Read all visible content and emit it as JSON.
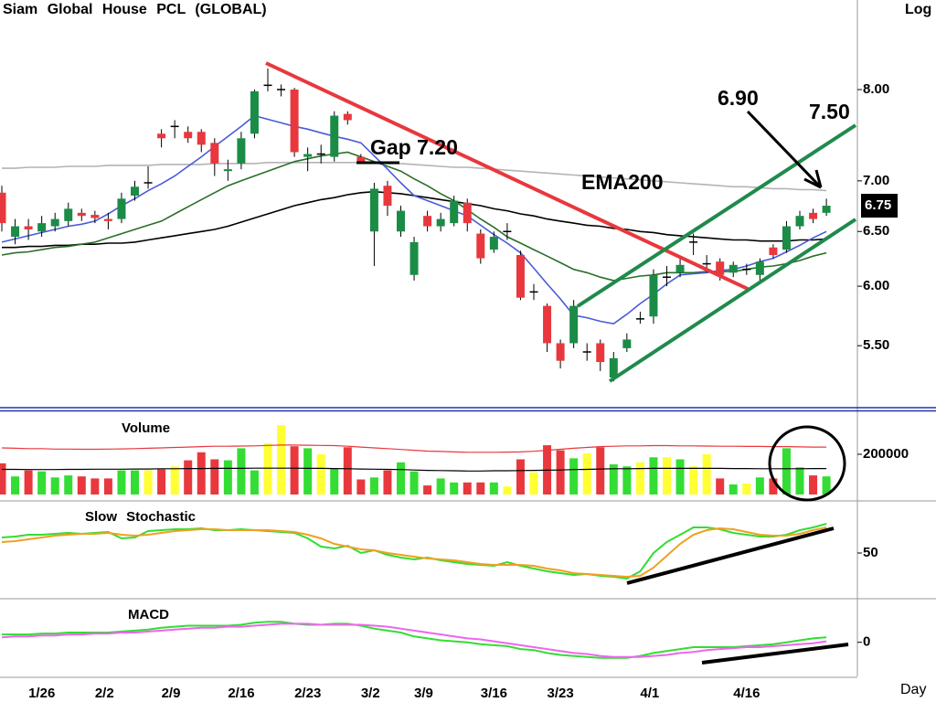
{
  "chart_data": [
    {
      "type": "candlestick",
      "title": "Siam Global House PCL (GLOBAL)",
      "scale_label": "Log",
      "xlabel": "Day",
      "log_scale": true,
      "categories": [
        null,
        null,
        "1/26",
        null,
        null,
        null,
        null,
        "2/2",
        null,
        null,
        null,
        null,
        "2/9",
        null,
        null,
        null,
        null,
        "2/16",
        null,
        null,
        null,
        null,
        "2/23",
        null,
        null,
        null,
        null,
        "3/2",
        null,
        null,
        null,
        "3/9",
        null,
        null,
        null,
        null,
        "3/16",
        null,
        null,
        null,
        null,
        "3/23",
        null,
        null,
        null,
        null,
        null,
        null,
        "4/1",
        null,
        null,
        null,
        null,
        null,
        null,
        "4/16",
        null,
        null,
        null,
        null,
        null,
        null,
        null
      ],
      "open": [
        6.88,
        6.45,
        6.55,
        6.5,
        6.55,
        6.6,
        6.68,
        6.66,
        6.62,
        6.62,
        6.85,
        6.98,
        7.5,
        7.58,
        7.52,
        7.52,
        7.4,
        7.1,
        7.18,
        7.5,
        8.05,
        8.0,
        8.0,
        7.25,
        7.28,
        7.25,
        7.72,
        7.25,
        6.5,
        6.95,
        6.5,
        6.1,
        6.65,
        6.55,
        6.58,
        6.78,
        6.48,
        6.33,
        6.5,
        6.28,
        5.95,
        5.83,
        5.52,
        5.52,
        5.45,
        5.52,
        5.25,
        5.48,
        5.72,
        5.74,
        6.08,
        6.12,
        6.4,
        6.2,
        6.22,
        6.12,
        6.15,
        6.1,
        6.35,
        6.33,
        6.55,
        6.68,
        6.68
      ],
      "high": [
        6.95,
        6.62,
        6.62,
        6.65,
        6.68,
        6.78,
        6.72,
        6.7,
        6.68,
        6.88,
        7.0,
        7.15,
        7.55,
        7.65,
        7.58,
        7.55,
        7.45,
        7.22,
        7.52,
        8.0,
        8.25,
        8.06,
        8.02,
        7.35,
        7.38,
        7.75,
        7.75,
        7.28,
        6.98,
        7.0,
        6.75,
        6.45,
        6.7,
        6.68,
        6.85,
        6.82,
        6.52,
        6.5,
        6.58,
        6.32,
        6.02,
        5.85,
        5.55,
        5.88,
        5.52,
        5.55,
        5.45,
        5.6,
        5.78,
        6.15,
        6.18,
        6.25,
        6.48,
        6.28,
        6.25,
        6.22,
        6.2,
        6.25,
        6.38,
        6.6,
        6.7,
        6.72,
        6.82
      ],
      "low": [
        6.5,
        6.38,
        6.42,
        6.45,
        6.5,
        6.55,
        6.6,
        6.58,
        6.52,
        6.58,
        6.8,
        6.92,
        7.35,
        7.45,
        7.4,
        7.3,
        7.05,
        7.0,
        7.12,
        7.45,
        7.98,
        7.92,
        7.25,
        7.1,
        7.18,
        7.2,
        7.6,
        7.18,
        6.18,
        6.65,
        6.45,
        6.05,
        6.5,
        6.5,
        6.55,
        6.5,
        6.2,
        6.3,
        6.42,
        5.88,
        5.88,
        5.45,
        5.32,
        5.48,
        5.38,
        5.3,
        5.22,
        5.45,
        5.68,
        5.68,
        6.0,
        6.08,
        6.28,
        6.12,
        6.05,
        6.08,
        6.1,
        6.05,
        6.25,
        6.3,
        6.52,
        6.58,
        6.65
      ],
      "close": [
        6.58,
        6.55,
        6.52,
        6.58,
        6.62,
        6.72,
        6.65,
        6.63,
        6.6,
        6.82,
        6.94,
        6.98,
        7.45,
        7.58,
        7.45,
        7.38,
        7.18,
        7.12,
        7.45,
        7.98,
        8.05,
        8.0,
        7.3,
        7.28,
        7.28,
        7.7,
        7.65,
        7.2,
        6.92,
        6.75,
        6.7,
        6.4,
        6.55,
        6.62,
        6.8,
        6.58,
        6.25,
        6.45,
        6.5,
        5.9,
        5.95,
        5.52,
        5.38,
        5.83,
        5.45,
        5.37,
        5.4,
        5.55,
        5.72,
        6.1,
        6.08,
        6.19,
        6.4,
        6.2,
        6.1,
        6.19,
        6.15,
        6.22,
        6.28,
        6.55,
        6.65,
        6.62,
        6.75
      ],
      "up_color": "#1a8c46",
      "down_color": "#e8383d",
      "flat_color": "#000000",
      "lines": [
        {
          "name": "EMA200",
          "color": "#b4b4b4",
          "values": [
            7.13,
            7.13,
            7.14,
            7.14,
            7.14,
            7.15,
            7.15,
            7.15,
            7.16,
            7.16,
            7.16,
            7.16,
            7.17,
            7.17,
            7.17,
            7.17,
            7.18,
            7.18,
            7.18,
            7.18,
            7.19,
            7.19,
            7.19,
            7.19,
            7.19,
            7.19,
            7.19,
            7.19,
            7.19,
            7.18,
            7.18,
            7.17,
            7.16,
            7.15,
            7.14,
            7.14,
            7.13,
            7.12,
            7.11,
            7.1,
            7.09,
            7.08,
            7.07,
            7.06,
            7.05,
            7.04,
            7.03,
            7.02,
            7.01,
            7.0,
            6.99,
            6.98,
            6.97,
            6.96,
            6.95,
            6.94,
            6.94,
            6.93,
            6.92,
            6.92,
            6.91,
            6.91,
            6.9
          ]
        },
        {
          "color": "#000000",
          "values": [
            6.35,
            6.35,
            6.36,
            6.36,
            6.37,
            6.37,
            6.38,
            6.38,
            6.39,
            6.39,
            6.4,
            6.42,
            6.44,
            6.46,
            6.48,
            6.5,
            6.52,
            6.55,
            6.59,
            6.63,
            6.67,
            6.71,
            6.75,
            6.78,
            6.81,
            6.83,
            6.86,
            6.88,
            6.89,
            6.88,
            6.87,
            6.85,
            6.83,
            6.81,
            6.79,
            6.77,
            6.75,
            6.72,
            6.7,
            6.67,
            6.65,
            6.62,
            6.6,
            6.58,
            6.56,
            6.55,
            6.53,
            6.52,
            6.5,
            6.49,
            6.47,
            6.46,
            6.45,
            6.44,
            6.43,
            6.42,
            6.42,
            6.41,
            6.41,
            6.41,
            6.42,
            6.42,
            6.43
          ]
        },
        {
          "color": "#2a6e2a",
          "values": [
            6.28,
            6.3,
            6.31,
            6.33,
            6.35,
            6.36,
            6.38,
            6.4,
            6.44,
            6.48,
            6.52,
            6.56,
            6.6,
            6.67,
            6.74,
            6.81,
            6.88,
            6.95,
            7.0,
            7.05,
            7.1,
            7.15,
            7.2,
            7.23,
            7.26,
            7.28,
            7.3,
            7.25,
            7.2,
            7.15,
            7.1,
            7.02,
            6.95,
            6.87,
            6.8,
            6.71,
            6.62,
            6.54,
            6.45,
            6.39,
            6.33,
            6.27,
            6.21,
            6.15,
            6.12,
            6.08,
            6.05,
            6.07,
            6.09,
            6.1,
            6.12,
            6.12,
            6.12,
            6.13,
            6.13,
            6.13,
            6.15,
            6.17,
            6.18,
            6.2,
            6.23,
            6.27,
            6.3
          ]
        },
        {
          "color": "#4a5bd8",
          "values": [
            6.4,
            6.43,
            6.46,
            6.49,
            6.52,
            6.55,
            6.57,
            6.6,
            6.67,
            6.75,
            6.82,
            6.9,
            6.97,
            7.05,
            7.15,
            7.25,
            7.36,
            7.47,
            7.58,
            7.7,
            7.66,
            7.62,
            7.58,
            7.55,
            7.51,
            7.47,
            7.44,
            7.4,
            7.26,
            7.12,
            6.98,
            6.85,
            6.8,
            6.75,
            6.7,
            6.65,
            6.56,
            6.47,
            6.39,
            6.3,
            6.16,
            6.02,
            5.89,
            5.75,
            5.73,
            5.7,
            5.68,
            5.76,
            5.85,
            5.93,
            6.02,
            6.1,
            6.11,
            6.12,
            6.14,
            6.15,
            6.18,
            6.22,
            6.25,
            6.31,
            6.37,
            6.44,
            6.5
          ]
        }
      ],
      "ylim": [
        5.03,
        9.12
      ],
      "yticks": [
        {
          "value": 8,
          "label": "8.00"
        },
        {
          "value": 7,
          "label": "7.00"
        },
        {
          "value": 6.5,
          "label": "6.50"
        },
        {
          "value": 6,
          "label": "6.00"
        },
        {
          "value": 5.5,
          "label": "5.50"
        }
      ],
      "last_price": 6.75,
      "annotations": [
        "Gap 7.20",
        "6.90",
        "7.50"
      ]
    },
    {
      "type": "bar",
      "title": "Volume",
      "values": [
        155000,
        90000,
        120000,
        115000,
        85000,
        95000,
        90000,
        80000,
        80000,
        120000,
        120000,
        120000,
        125000,
        140000,
        170000,
        210000,
        175000,
        170000,
        230000,
        120000,
        255000,
        345000,
        240000,
        230000,
        200000,
        130000,
        235000,
        75000,
        85000,
        120000,
        160000,
        115000,
        45000,
        80000,
        60000,
        60000,
        60000,
        60000,
        40000,
        175000,
        110000,
        245000,
        220000,
        180000,
        205000,
        235000,
        150000,
        140000,
        160000,
        185000,
        185000,
        175000,
        140000,
        200000,
        80000,
        50000,
        55000,
        85000,
        80000,
        230000,
        135000,
        95000,
        90000
      ],
      "up_color": "#33dd33",
      "down_color": "#e8383d",
      "flat_color": "#ffff33",
      "lines": [
        {
          "color": "#e8383d",
          "values": [
            232000,
            230000,
            228000,
            228000,
            226000,
            226000,
            225000,
            225000,
            226000,
            227000,
            228000,
            230000,
            232000,
            234000,
            236000,
            238000,
            240000,
            240000,
            241000,
            242000,
            244000,
            246000,
            246000,
            245000,
            244000,
            243000,
            240000,
            236000,
            232000,
            228000,
            224000,
            220000,
            216000,
            214000,
            212000,
            210000,
            210000,
            210000,
            211000,
            212000,
            215000,
            220000,
            225000,
            230000,
            234000,
            238000,
            240000,
            242000,
            242000,
            243000,
            243000,
            242000,
            242000,
            241000,
            240000,
            240000,
            239000,
            239000,
            238000,
            238000,
            237000,
            236000,
            236000
          ]
        },
        {
          "color": "#000000",
          "values": [
            125000,
            125000,
            124000,
            124000,
            124000,
            125000,
            125000,
            126000,
            126000,
            126000,
            127000,
            127000,
            128000,
            128000,
            129000,
            129000,
            130000,
            130000,
            130000,
            131000,
            131000,
            131000,
            131000,
            130000,
            130000,
            129000,
            128000,
            127000,
            126000,
            125000,
            124000,
            122000,
            120000,
            119000,
            118000,
            117000,
            117000,
            118000,
            118000,
            119000,
            120000,
            121000,
            122000,
            124000,
            125000,
            127000,
            128000,
            128000,
            129000,
            130000,
            130000,
            130000,
            130000,
            130000,
            130000,
            129000,
            129000,
            128000,
            128000,
            128000,
            128000,
            129000,
            129000
          ]
        }
      ],
      "ylim": [
        0,
        400000
      ],
      "yticks": [
        200000
      ]
    },
    {
      "type": "line",
      "title": "Slow Stochastic",
      "series": [
        {
          "color": "#33dd33",
          "values": [
            67,
            68,
            70,
            70,
            71,
            72,
            71,
            72,
            73,
            66,
            67,
            74,
            75,
            76,
            76,
            77,
            75,
            75,
            76,
            75,
            74,
            73,
            72,
            66,
            57,
            55,
            58,
            50,
            53,
            48,
            45,
            43,
            45,
            42,
            40,
            38,
            37,
            36,
            40,
            36,
            33,
            30,
            28,
            26,
            27,
            25,
            24,
            22,
            30,
            50,
            62,
            70,
            78,
            78,
            76,
            72,
            70,
            68,
            68,
            70,
            75,
            78,
            82
          ]
        },
        {
          "color": "#f0a020",
          "values": [
            62,
            63,
            65,
            67,
            69,
            70,
            71,
            71,
            72,
            70,
            69,
            70,
            72,
            74,
            75,
            76,
            76,
            75,
            75,
            75,
            75,
            74,
            73,
            70,
            66,
            60,
            57,
            54,
            53,
            50,
            48,
            46,
            44,
            43,
            42,
            40,
            38,
            37,
            37,
            37,
            36,
            33,
            31,
            28,
            27,
            26,
            25,
            24,
            25,
            34,
            47,
            60,
            70,
            75,
            77,
            76,
            73,
            70,
            69,
            69,
            71,
            75,
            78
          ]
        }
      ],
      "ylim": [
        0,
        100
      ],
      "yticks": [
        50
      ]
    },
    {
      "type": "line",
      "title": "MACD",
      "series": [
        {
          "color": "#33dd33",
          "values": [
            0.08,
            0.08,
            0.08,
            0.09,
            0.09,
            0.1,
            0.1,
            0.1,
            0.1,
            0.11,
            0.12,
            0.13,
            0.15,
            0.16,
            0.17,
            0.17,
            0.17,
            0.17,
            0.18,
            0.2,
            0.21,
            0.21,
            0.19,
            0.18,
            0.18,
            0.19,
            0.19,
            0.17,
            0.14,
            0.12,
            0.1,
            0.06,
            0.04,
            0.02,
            0.01,
            0,
            -0.02,
            -0.03,
            -0.04,
            -0.07,
            -0.08,
            -0.11,
            -0.13,
            -0.14,
            -0.15,
            -0.16,
            -0.16,
            -0.16,
            -0.14,
            -0.11,
            -0.09,
            -0.07,
            -0.05,
            -0.05,
            -0.05,
            -0.05,
            -0.04,
            -0.03,
            -0.02,
            0,
            0.02,
            0.04,
            0.05
          ]
        },
        {
          "color": "#ee66ee",
          "values": [
            0.05,
            0.06,
            0.06,
            0.07,
            0.07,
            0.08,
            0.08,
            0.09,
            0.09,
            0.1,
            0.1,
            0.11,
            0.12,
            0.13,
            0.14,
            0.15,
            0.15,
            0.16,
            0.16,
            0.17,
            0.18,
            0.19,
            0.19,
            0.19,
            0.18,
            0.18,
            0.18,
            0.18,
            0.17,
            0.16,
            0.14,
            0.12,
            0.1,
            0.08,
            0.06,
            0.04,
            0.03,
            0.01,
            -0.01,
            -0.03,
            -0.05,
            -0.07,
            -0.09,
            -0.11,
            -0.12,
            -0.14,
            -0.15,
            -0.15,
            -0.15,
            -0.14,
            -0.13,
            -0.11,
            -0.1,
            -0.08,
            -0.07,
            -0.06,
            -0.05,
            -0.05,
            -0.04,
            -0.03,
            -0.02,
            -0.01,
            0.01
          ]
        }
      ],
      "ylim": [
        -0.35,
        0.4
      ],
      "yticks": [
        0
      ]
    }
  ]
}
